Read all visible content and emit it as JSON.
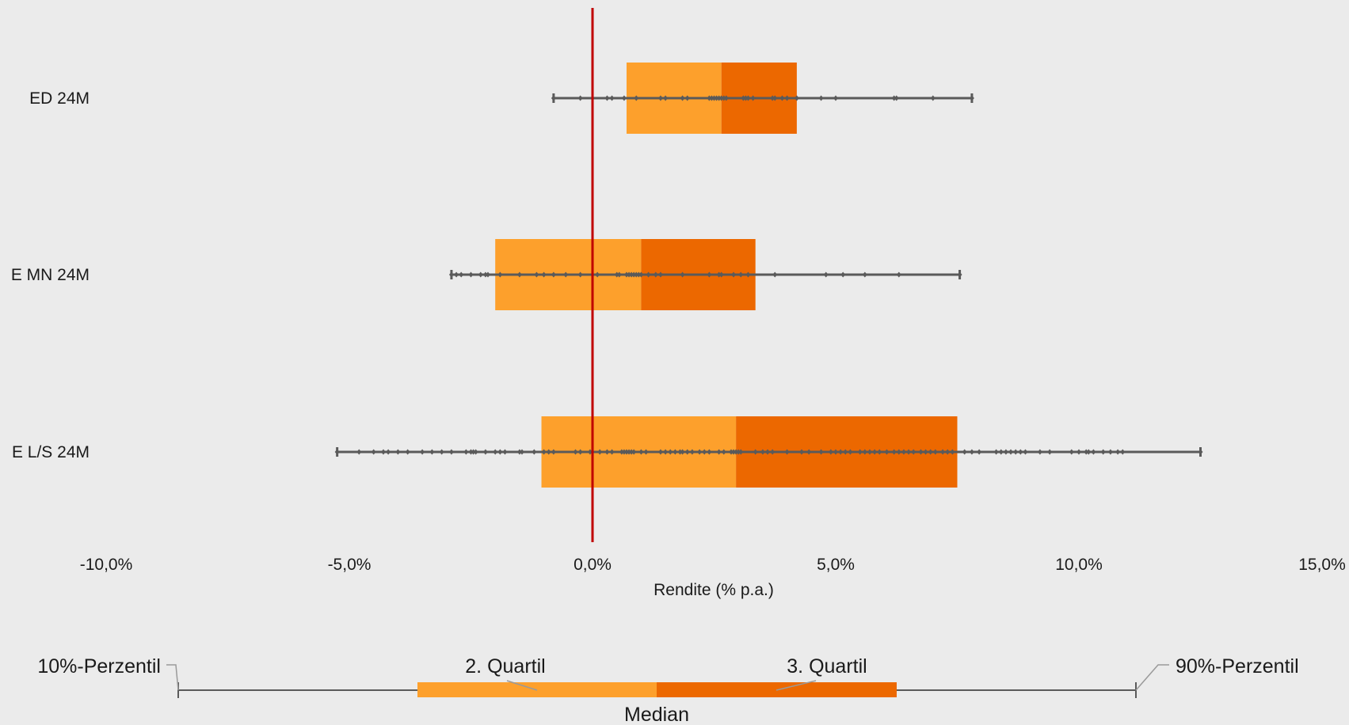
{
  "chart_data": {
    "type": "box",
    "orientation": "horizontal",
    "xlabel": "Rendite (% p.a.)",
    "xlim": [
      -10,
      15
    ],
    "xticks": [
      -10,
      -5,
      0,
      5,
      10,
      15
    ],
    "xtick_labels": [
      "-10,0%",
      "-5,0%",
      "0,0%",
      "5,0%",
      "10,0%",
      "15,0%"
    ],
    "reference_line": {
      "x": 0,
      "color": "#c00000"
    },
    "colors": {
      "q2": "#fda02c",
      "q3": "#ec6800",
      "whisker": "#5a5a5a",
      "point": "#5a5a5a"
    },
    "series": [
      {
        "name": "ED 24M",
        "p10": -0.8,
        "q1": 0.7,
        "median": 2.65,
        "q3": 4.2,
        "p90": 7.8,
        "points": [
          -0.8,
          -0.25,
          0.3,
          0.4,
          0.65,
          0.9,
          1.4,
          1.5,
          1.85,
          1.95,
          2.4,
          2.45,
          2.5,
          2.55,
          2.6,
          2.65,
          2.7,
          2.75,
          3.1,
          3.15,
          3.2,
          3.3,
          3.7,
          3.75,
          3.9,
          4.0,
          4.2,
          4.7,
          5.0,
          6.2,
          6.25,
          7.0,
          7.8
        ]
      },
      {
        "name": "E MN 24M",
        "p10": -2.9,
        "q1": -2.0,
        "median": 1.0,
        "q3": 3.35,
        "p90": 7.55,
        "points": [
          -2.9,
          -2.8,
          -2.7,
          -2.5,
          -2.3,
          -2.2,
          -2.15,
          -1.9,
          -1.5,
          -1.15,
          -1.0,
          -0.8,
          -0.55,
          -0.25,
          0.1,
          0.5,
          0.55,
          0.7,
          0.75,
          0.8,
          0.85,
          0.9,
          0.95,
          1.0,
          1.15,
          1.3,
          1.4,
          1.85,
          2.4,
          2.6,
          2.65,
          2.9,
          3.05,
          3.2,
          3.75,
          4.8,
          5.15,
          5.6,
          6.3,
          7.55
        ]
      },
      {
        "name": "E L/S 24M",
        "p10": -5.25,
        "q1": -1.05,
        "median": 2.95,
        "q3": 7.5,
        "p90": 12.5,
        "points": [
          -5.25,
          -4.8,
          -4.5,
          -4.3,
          -4.2,
          -4.0,
          -3.8,
          -3.5,
          -3.3,
          -3.1,
          -2.9,
          -2.6,
          -2.5,
          -2.45,
          -2.4,
          -2.2,
          -2.0,
          -1.9,
          -1.8,
          -1.5,
          -1.45,
          -1.2,
          -1.0,
          -0.9,
          -0.8,
          -0.35,
          -0.25,
          -0.05,
          0.15,
          0.3,
          0.4,
          0.6,
          0.65,
          0.7,
          0.75,
          0.8,
          0.85,
          1.0,
          1.1,
          1.4,
          1.5,
          1.6,
          1.7,
          1.8,
          1.85,
          1.95,
          2.05,
          2.2,
          2.3,
          2.4,
          2.6,
          2.7,
          2.85,
          2.9,
          2.95,
          3.0,
          3.05,
          3.35,
          3.5,
          3.6,
          3.7,
          4.0,
          4.3,
          4.45,
          4.7,
          4.9,
          5.0,
          5.1,
          5.2,
          5.3,
          5.5,
          5.6,
          5.7,
          5.8,
          5.9,
          6.05,
          6.2,
          6.3,
          6.4,
          6.5,
          6.6,
          6.75,
          6.85,
          6.95,
          7.05,
          7.2,
          7.3,
          7.4,
          7.65,
          7.8,
          7.95,
          8.3,
          8.4,
          8.5,
          8.6,
          8.7,
          8.8,
          8.9,
          9.2,
          9.4,
          9.85,
          10.0,
          10.15,
          10.2,
          10.3,
          10.5,
          10.65,
          10.8,
          10.9,
          12.5
        ]
      }
    ]
  },
  "legend": {
    "p10_label": "10%-Perzentil",
    "q2_label": "2. Quartil",
    "q3_label": "3. Quartil",
    "p90_label": "90%-Perzentil",
    "median_label": "Median"
  }
}
